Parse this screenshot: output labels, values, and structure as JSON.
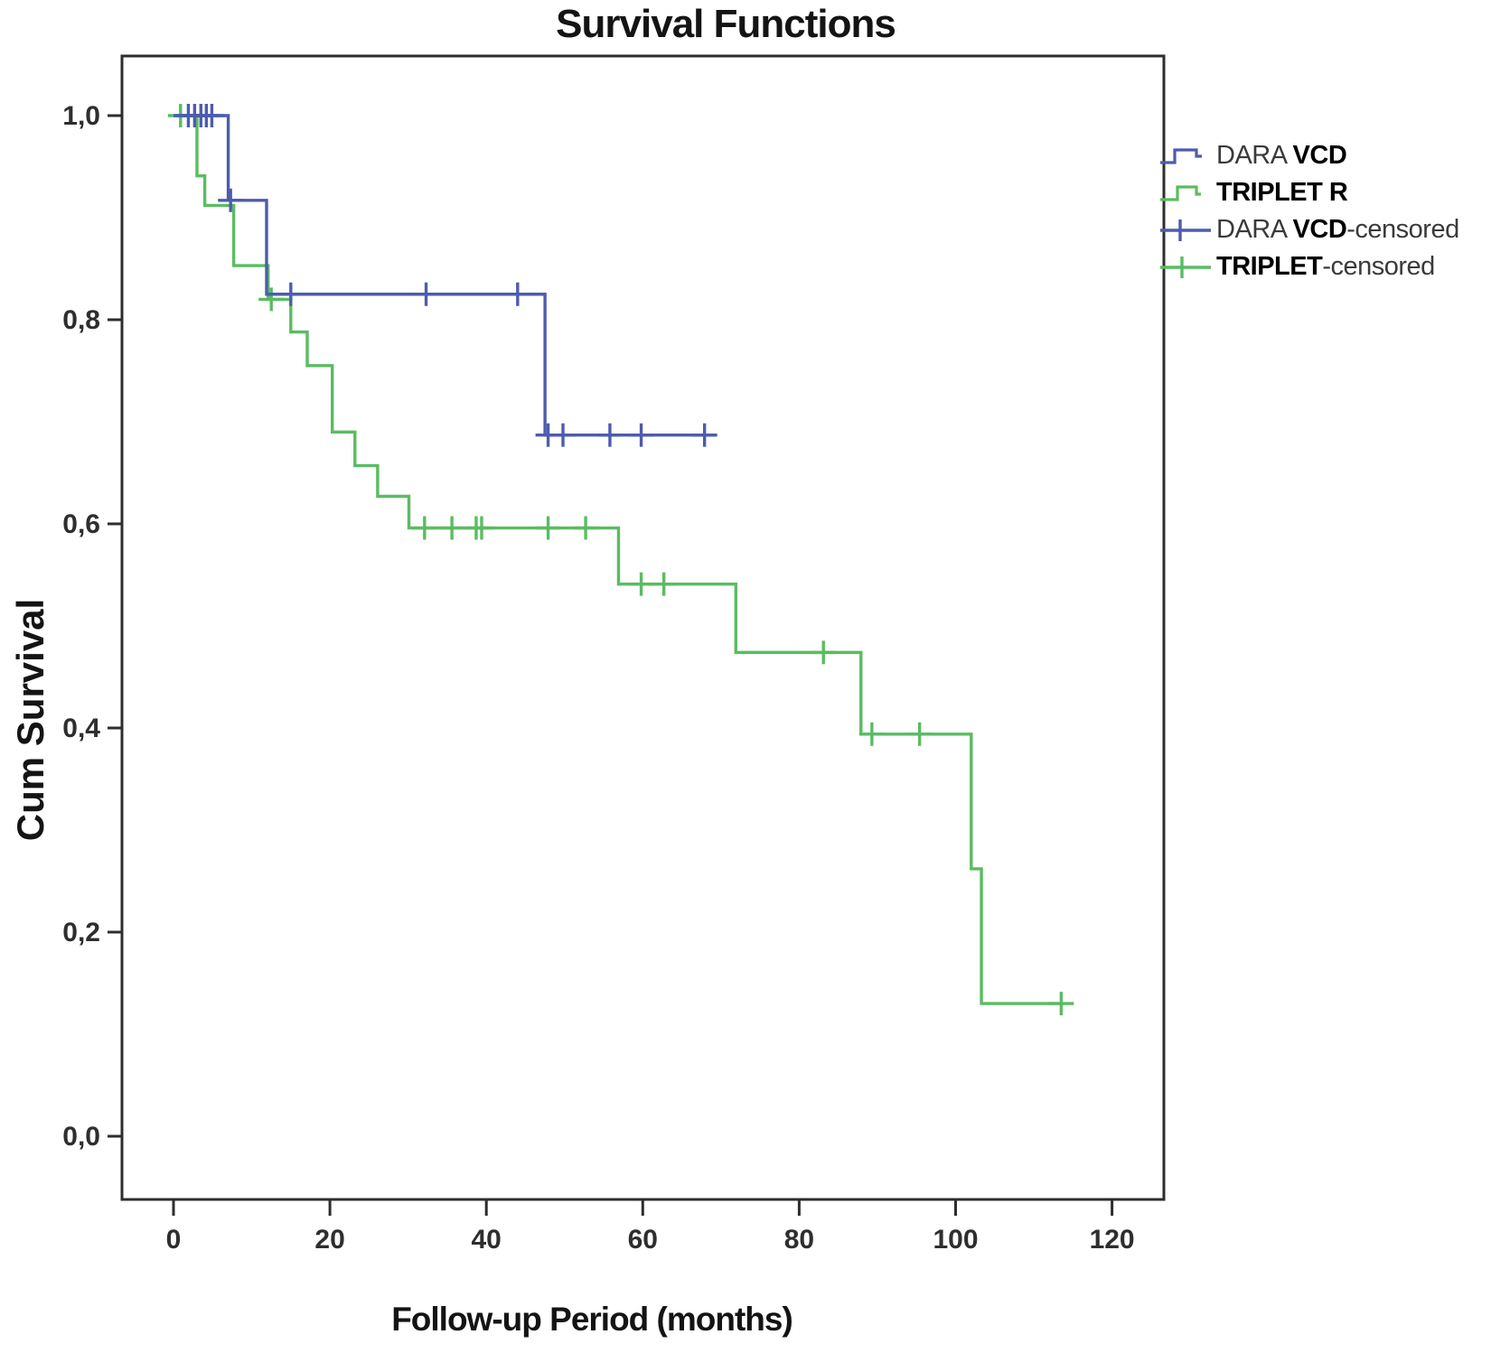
{
  "title": "Survival Functions",
  "x_axis": {
    "label": "Follow-up Period (months)",
    "tick_labels": [
      "0",
      "20",
      "40",
      "60",
      "80",
      "100",
      "120"
    ],
    "tick_values": [
      0,
      20,
      40,
      60,
      80,
      100,
      120
    ]
  },
  "y_axis": {
    "label": "Cum Survival",
    "tick_labels": [
      "1,0",
      "0,8",
      "0,6",
      "0,4",
      "0,2",
      "0,0"
    ],
    "tick_values": [
      1.0,
      0.8,
      0.6,
      0.4,
      0.2,
      0.0
    ]
  },
  "legend": {
    "position": "right",
    "entries": [
      {
        "pre": "DARA ",
        "bold": "VCD",
        "post": "",
        "glyph": "step-line",
        "color_key": "dara_vcd"
      },
      {
        "pre": "",
        "bold": "TRIPLET R",
        "post": "",
        "glyph": "step-line",
        "color_key": "triplet_r"
      },
      {
        "pre": "DARA ",
        "bold": "VCD",
        "post": "-censored",
        "glyph": "plus-line",
        "color_key": "dara_vcd"
      },
      {
        "pre": "",
        "bold": "TRIPLET",
        "post": "-censored",
        "glyph": "plus-line",
        "color_key": "triplet_r"
      }
    ]
  },
  "colors": {
    "dara_vcd": "#4d5cae",
    "triplet_r": "#5abc62",
    "frame": "#2d2d2d",
    "text": "#141414"
  },
  "chart_data": {
    "type": "line",
    "subtype": "kaplan-meier-step",
    "title": "Survival Functions",
    "xlabel": "Follow-up Period (months)",
    "ylabel": "Cum Survival",
    "xlim": [
      -7,
      127
    ],
    "ylim": [
      -0.06,
      1.06
    ],
    "grid": false,
    "legend_position": "right",
    "series": [
      {
        "name": "TRIPLET R",
        "color_key": "triplet_r",
        "steps": [
          [
            0,
            1.0
          ],
          [
            3,
            0.941
          ],
          [
            4,
            0.912
          ],
          [
            7.7,
            0.853
          ],
          [
            12.1,
            0.82
          ],
          [
            15,
            0.788
          ],
          [
            17.1,
            0.755
          ],
          [
            20.3,
            0.69
          ],
          [
            23.2,
            0.657
          ],
          [
            26.1,
            0.627
          ],
          [
            30.1,
            0.596
          ],
          [
            56.9,
            0.541
          ],
          [
            71.9,
            0.474
          ],
          [
            87.9,
            0.394
          ],
          [
            102,
            0.262
          ],
          [
            103.3,
            0.13
          ]
        ],
        "end_x": 113.8,
        "censored": [
          [
            0.9,
            1.0
          ],
          [
            12.5,
            0.82
          ],
          [
            32.1,
            0.596
          ],
          [
            35.6,
            0.596
          ],
          [
            38.7,
            0.596
          ],
          [
            39.4,
            0.596
          ],
          [
            47.9,
            0.596
          ],
          [
            52.7,
            0.596
          ],
          [
            59.8,
            0.541
          ],
          [
            62.7,
            0.541
          ],
          [
            83.1,
            0.474
          ],
          [
            89.3,
            0.394
          ],
          [
            95.4,
            0.394
          ],
          [
            113.5,
            0.13
          ]
        ]
      },
      {
        "name": "DARA VCD",
        "color_key": "dara_vcd",
        "steps": [
          [
            0,
            1.0
          ],
          [
            7,
            0.917
          ],
          [
            11.9,
            0.825
          ],
          [
            47.5,
            0.687
          ]
        ],
        "end_x": 69.3,
        "censored": [
          [
            1.9,
            1.0
          ],
          [
            2.7,
            1.0
          ],
          [
            3.5,
            1.0
          ],
          [
            4.2,
            1.0
          ],
          [
            4.9,
            1.0
          ],
          [
            7.3,
            0.917
          ],
          [
            15,
            0.825
          ],
          [
            32.3,
            0.825
          ],
          [
            44,
            0.825
          ],
          [
            47.9,
            0.687
          ],
          [
            49.8,
            0.687
          ],
          [
            55.8,
            0.687
          ],
          [
            59.8,
            0.687
          ],
          [
            67.9,
            0.687
          ]
        ]
      }
    ]
  }
}
